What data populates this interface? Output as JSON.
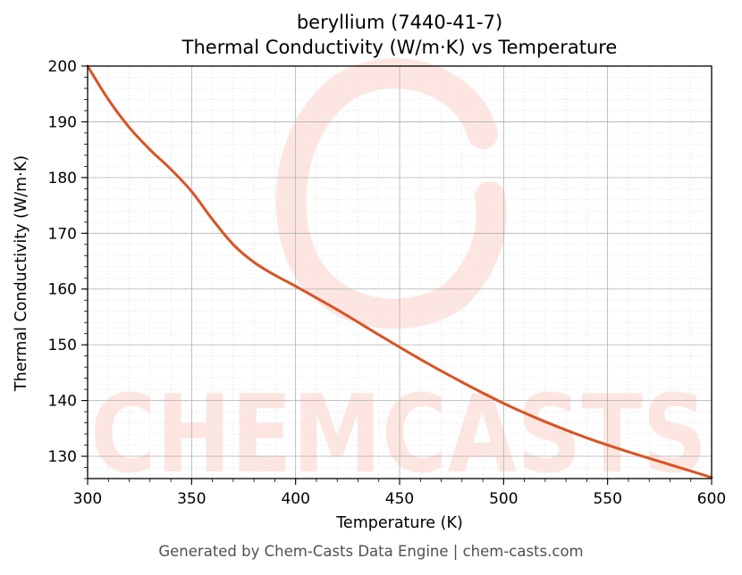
{
  "chart_data": {
    "type": "line",
    "title": "beryllium (7440-41-7)",
    "subtitle": "Thermal Conductivity (W/m·K) vs Temperature",
    "xlabel": "Temperature (K)",
    "ylabel": "Thermal Conductivity (W/m·K)",
    "xlim": [
      300,
      600
    ],
    "ylim": [
      126,
      200
    ],
    "xticks": [
      300,
      350,
      400,
      450,
      500,
      550,
      600
    ],
    "yticks": [
      130,
      140,
      150,
      160,
      170,
      180,
      190,
      200
    ],
    "grid": true,
    "series": [
      {
        "color": "#d95322",
        "x": [
          300,
          310,
          320,
          330,
          340,
          350,
          360,
          370,
          380,
          390,
          400,
          420,
          440,
          460,
          480,
          500,
          520,
          540,
          560,
          580,
          600
        ],
        "y": [
          200,
          194,
          189,
          185,
          181.5,
          177.5,
          172.5,
          168,
          164.8,
          162.5,
          160.5,
          156.3,
          151.8,
          147.4,
          143.3,
          139.5,
          136.2,
          133.3,
          130.8,
          128.5,
          126.2
        ]
      }
    ]
  },
  "watermark": {
    "text": "CHEMCASTS",
    "color": "#fde6e1"
  },
  "footer": "Generated by Chem-Casts Data Engine | chem-casts.com"
}
